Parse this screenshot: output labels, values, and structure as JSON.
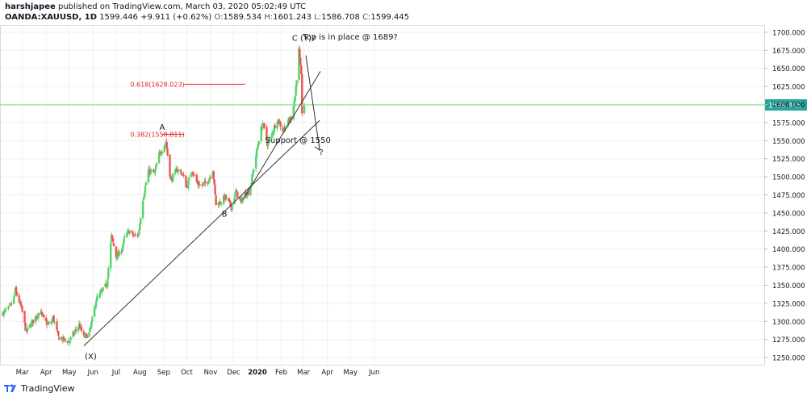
{
  "header": {
    "author": "harshjapee",
    "published_text": "published on TradingView.com, March 03, 2020 05:02:49 UTC",
    "symbol": "OANDA:XAUUSD, 1D",
    "last": "1599.446",
    "change": "+9.911 (+0.62%)",
    "o_label": "O:",
    "o_value": "1589.534",
    "h_label": "H:",
    "h_value": "1601.243",
    "l_label": "L:",
    "l_value": "1586.708",
    "c_label": "C:",
    "c_value": "1599.445"
  },
  "footer": {
    "brand": "TradingView"
  },
  "colors": {
    "up": "#53d36b",
    "down": "#ef5350",
    "fib": "#e3202a",
    "price_line": "#7ddc7d",
    "grid": "#eef0f3"
  },
  "chart_data": {
    "type": "candlestick",
    "ylim": [
      1240,
      1710
    ],
    "y_ticks": [
      "1250.000",
      "1275.000",
      "1300.000",
      "1325.000",
      "1350.000",
      "1375.000",
      "1400.000",
      "1425.000",
      "1450.000",
      "1475.000",
      "1500.000",
      "1525.000",
      "1550.000",
      "1575.000",
      "1600.000",
      "1625.000",
      "1650.000",
      "1675.000",
      "1700.000"
    ],
    "x_ticks": [
      "Mar",
      "Apr",
      "May",
      "Jun",
      "Jul",
      "Aug",
      "Sep",
      "Oct",
      "Nov",
      "Dec",
      "2020",
      "Feb",
      "Mar",
      "Apr",
      "May",
      "Jun"
    ],
    "last_price_label": "1599.445",
    "last_price": 1599.445,
    "close_path": [
      [
        "2019-02-04",
        1312
      ],
      [
        "2019-02-10",
        1316
      ],
      [
        "2019-02-17",
        1327
      ],
      [
        "2019-02-20",
        1343
      ],
      [
        "2019-02-24",
        1330
      ],
      [
        "2019-02-28",
        1318
      ],
      [
        "2019-03-06",
        1285
      ],
      [
        "2019-03-12",
        1296
      ],
      [
        "2019-03-18",
        1305
      ],
      [
        "2019-03-24",
        1315
      ],
      [
        "2019-03-30",
        1300
      ],
      [
        "2019-04-05",
        1295
      ],
      [
        "2019-04-10",
        1305
      ],
      [
        "2019-04-17",
        1278
      ],
      [
        "2019-04-23",
        1275
      ],
      [
        "2019-05-01",
        1272
      ],
      [
        "2019-05-08",
        1285
      ],
      [
        "2019-05-14",
        1295
      ],
      [
        "2019-05-20",
        1278
      ],
      [
        "2019-05-27",
        1283
      ],
      [
        "2019-05-31",
        1302
      ],
      [
        "2019-06-05",
        1330
      ],
      [
        "2019-06-12",
        1340
      ],
      [
        "2019-06-19",
        1352
      ],
      [
        "2019-06-25",
        1418
      ],
      [
        "2019-07-01",
        1390
      ],
      [
        "2019-07-07",
        1395
      ],
      [
        "2019-07-12",
        1415
      ],
      [
        "2019-07-18",
        1425
      ],
      [
        "2019-07-24",
        1418
      ],
      [
        "2019-07-30",
        1420
      ],
      [
        "2019-08-05",
        1470
      ],
      [
        "2019-08-12",
        1508
      ],
      [
        "2019-08-20",
        1505
      ],
      [
        "2019-08-26",
        1530
      ],
      [
        "2019-09-04",
        1548
      ],
      [
        "2019-09-10",
        1495
      ],
      [
        "2019-09-18",
        1510
      ],
      [
        "2019-09-25",
        1505
      ],
      [
        "2019-10-01",
        1485
      ],
      [
        "2019-10-08",
        1510
      ],
      [
        "2019-10-15",
        1490
      ],
      [
        "2019-10-22",
        1488
      ],
      [
        "2019-10-29",
        1495
      ],
      [
        "2019-11-04",
        1510
      ],
      [
        "2019-11-08",
        1462
      ],
      [
        "2019-11-14",
        1465
      ],
      [
        "2019-11-20",
        1472
      ],
      [
        "2019-11-28",
        1458
      ],
      [
        "2019-12-04",
        1480
      ],
      [
        "2019-12-10",
        1465
      ],
      [
        "2019-12-16",
        1476
      ],
      [
        "2019-12-22",
        1480
      ],
      [
        "2019-12-27",
        1512
      ],
      [
        "2020-01-03",
        1552
      ],
      [
        "2020-01-08",
        1575
      ],
      [
        "2020-01-14",
        1546
      ],
      [
        "2020-01-20",
        1560
      ],
      [
        "2020-01-27",
        1580
      ],
      [
        "2020-02-03",
        1565
      ],
      [
        "2020-02-08",
        1572
      ],
      [
        "2020-02-14",
        1582
      ],
      [
        "2020-02-19",
        1612
      ],
      [
        "2020-02-24",
        1675
      ],
      [
        "2020-02-27",
        1638
      ],
      [
        "2020-02-28",
        1590
      ],
      [
        "2020-03-02",
        1599
      ]
    ],
    "fib_levels": [
      {
        "label": "0.618(1628.023)",
        "value": 1628.023
      },
      {
        "label": "0.382(1558.811)",
        "value": 1558.811
      }
    ],
    "annotations": [
      {
        "text": "Top is in place @ 1689?"
      },
      {
        "text": "C (Y)?"
      },
      {
        "text": "A"
      },
      {
        "text": "B"
      },
      {
        "text": "(X)"
      },
      {
        "text": "Support @ 1550"
      },
      {
        "text": "?"
      }
    ]
  }
}
